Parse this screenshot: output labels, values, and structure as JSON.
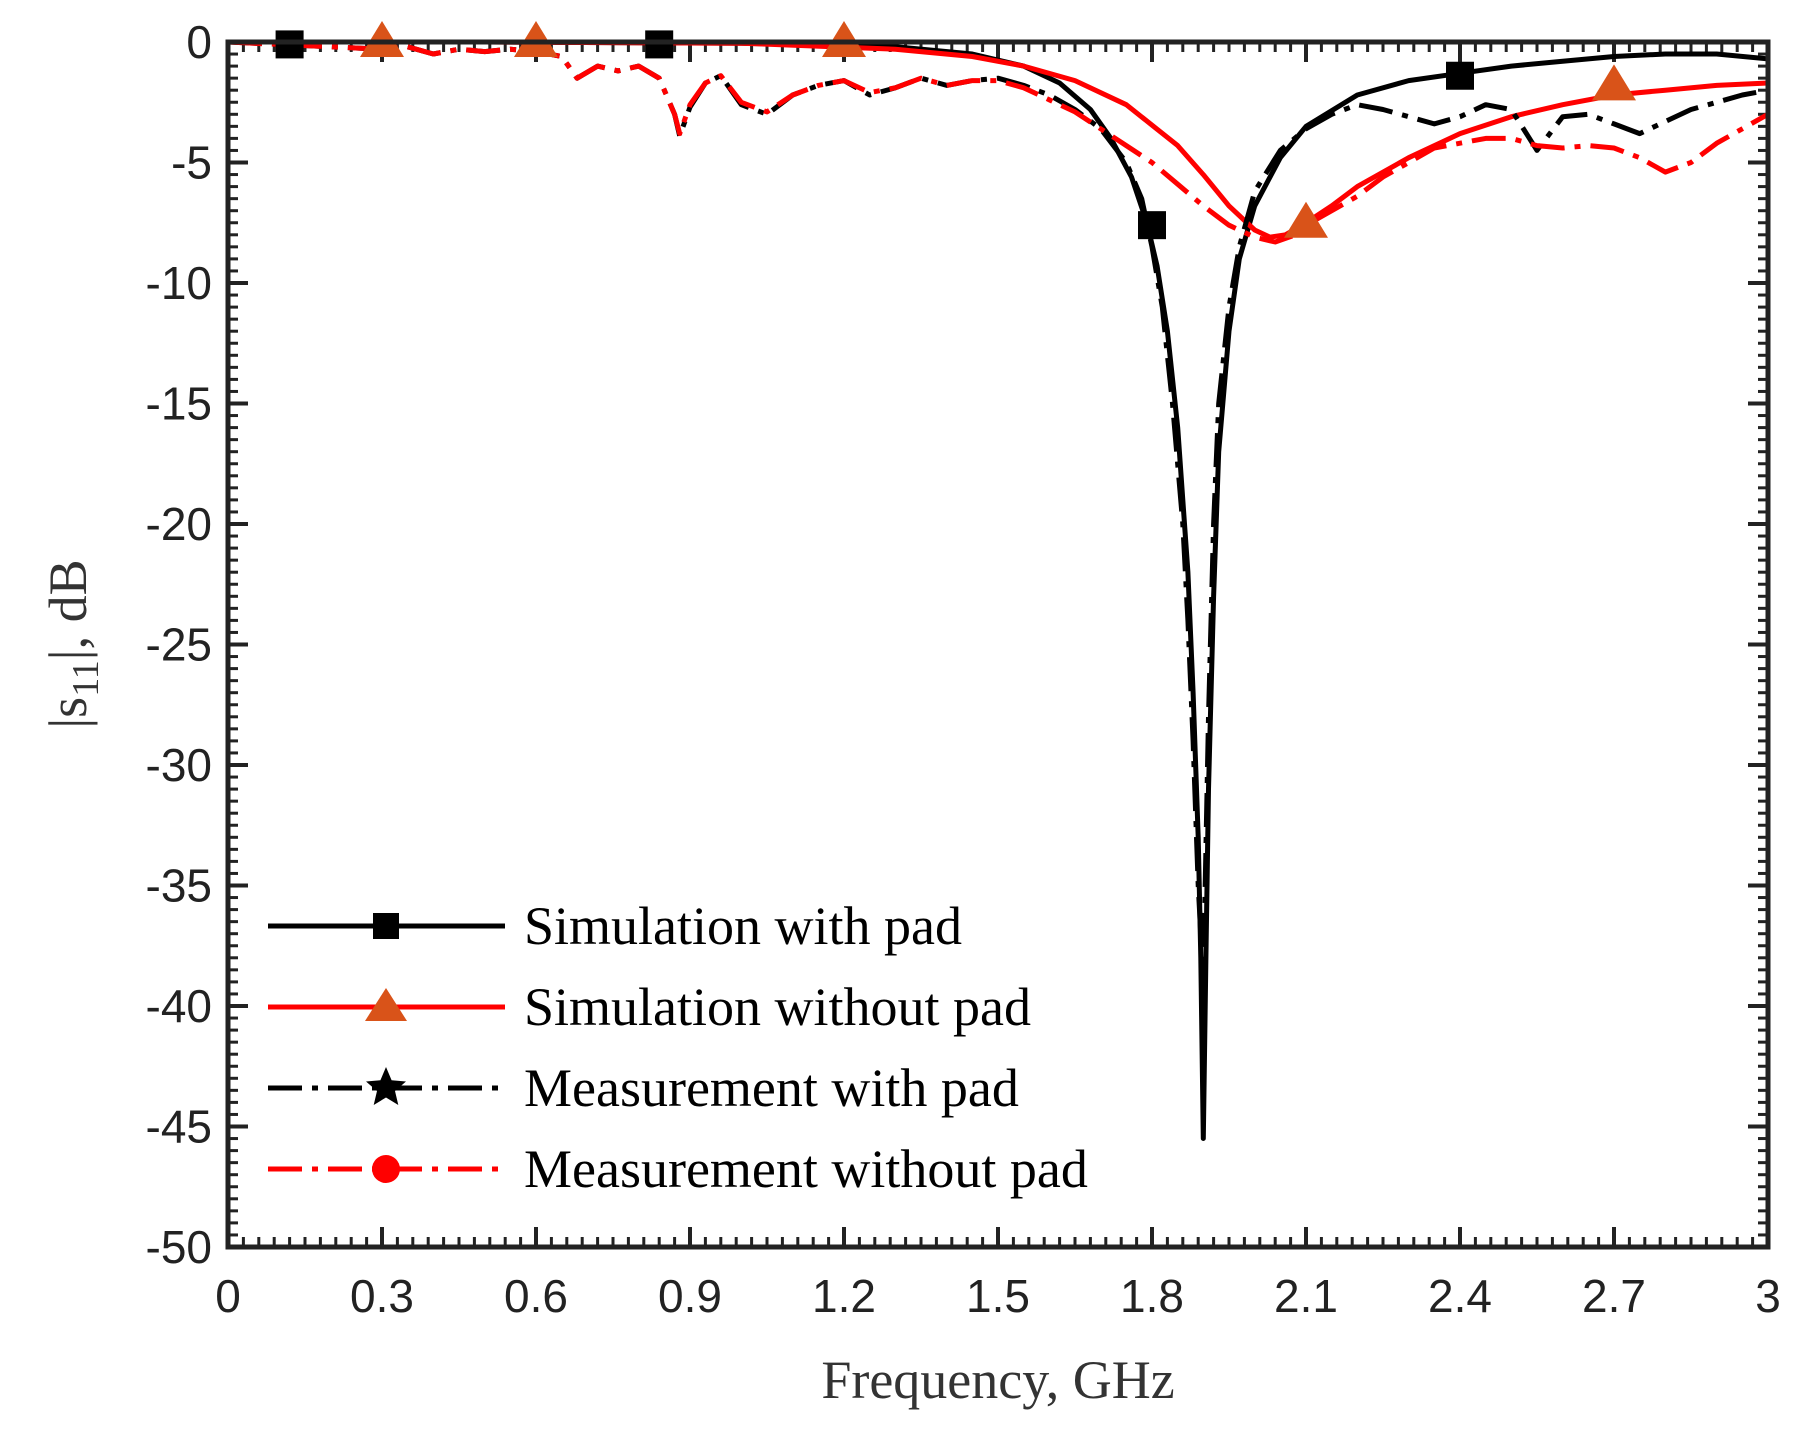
{
  "chart_data": {
    "type": "line",
    "title": "",
    "xlabel": "Frequency, GHz",
    "ylabel": "|s11|, dB",
    "ylabel_main": "|s",
    "ylabel_sub": "11",
    "ylabel_tail": "|, dB",
    "xlim": [
      0,
      3
    ],
    "ylim": [
      -50,
      0
    ],
    "xticks": [
      0,
      0.3,
      0.6,
      0.9,
      1.2,
      1.5,
      1.8,
      2.1,
      2.4,
      2.7,
      3
    ],
    "xtick_labels": [
      "0",
      "0.3",
      "0.6",
      "0.9",
      "1.2",
      "1.5",
      "1.8",
      "2.1",
      "2.4",
      "2.7",
      "3"
    ],
    "yticks": [
      0,
      -5,
      -10,
      -15,
      -20,
      -25,
      -30,
      -35,
      -40,
      -45,
      -50
    ],
    "ytick_labels": [
      "0",
      "-5",
      "-10",
      "-15",
      "-20",
      "-25",
      "-30",
      "-35",
      "-40",
      "-45",
      "-50"
    ],
    "grid": false,
    "legend_position": "bottom-left",
    "series": [
      {
        "name": "Simulation with pad",
        "color": "#000000",
        "dash": "solid",
        "marker": "square",
        "marker_color": "#000000",
        "x": [
          0,
          0.5,
          1.0,
          1.3,
          1.45,
          1.55,
          1.62,
          1.68,
          1.72,
          1.76,
          1.79,
          1.81,
          1.83,
          1.85,
          1.87,
          1.88,
          1.89,
          1.895,
          1.9,
          1.905,
          1.91,
          1.92,
          1.93,
          1.95,
          1.97,
          2.0,
          2.05,
          2.1,
          2.2,
          2.3,
          2.4,
          2.5,
          2.6,
          2.7,
          2.8,
          2.9,
          3.0
        ],
        "y": [
          0,
          0,
          -0.05,
          -0.2,
          -0.5,
          -1.0,
          -1.7,
          -2.8,
          -4.0,
          -5.6,
          -7.5,
          -9.3,
          -12,
          -16,
          -22,
          -27,
          -33,
          -38,
          -45.5,
          -38,
          -31,
          -23,
          -17,
          -12,
          -9,
          -6.8,
          -4.8,
          -3.5,
          -2.2,
          -1.6,
          -1.3,
          -1.0,
          -0.8,
          -0.6,
          -0.5,
          -0.5,
          -0.7
        ],
        "marker_x": [
          0.12,
          0.84,
          1.8,
          2.4
        ],
        "marker_y": [
          -0.1,
          -0.1,
          -7.6,
          -1.4
        ]
      },
      {
        "name": "Simulation without pad",
        "color": "#ff0000",
        "dash": "solid",
        "marker": "triangle",
        "marker_color": "#d95319",
        "x": [
          0,
          0.5,
          1.0,
          1.3,
          1.45,
          1.55,
          1.65,
          1.75,
          1.85,
          1.9,
          1.95,
          2.0,
          2.03,
          2.06,
          2.1,
          2.15,
          2.2,
          2.3,
          2.4,
          2.5,
          2.6,
          2.7,
          2.8,
          2.9,
          3.0
        ],
        "y": [
          0,
          0,
          -0.05,
          -0.3,
          -0.6,
          -1.0,
          -1.6,
          -2.6,
          -4.3,
          -5.5,
          -6.8,
          -7.8,
          -8.1,
          -8.0,
          -7.5,
          -6.8,
          -6.0,
          -4.8,
          -3.8,
          -3.1,
          -2.6,
          -2.2,
          -2.0,
          -1.8,
          -1.7
        ],
        "marker_x": [
          0.3,
          0.6,
          1.2,
          2.1,
          2.7
        ],
        "marker_y": [
          0,
          0,
          0,
          -7.5,
          -1.8
        ]
      },
      {
        "name": "Measurement with pad",
        "color": "#000000",
        "dash": "dashdot",
        "marker": "star",
        "marker_color": "#000000",
        "x": [
          0,
          0.1,
          0.2,
          0.3,
          0.35,
          0.4,
          0.45,
          0.5,
          0.55,
          0.6,
          0.65,
          0.68,
          0.72,
          0.76,
          0.8,
          0.84,
          0.87,
          0.88,
          0.9,
          0.93,
          0.96,
          1.0,
          1.05,
          1.1,
          1.15,
          1.2,
          1.25,
          1.3,
          1.35,
          1.4,
          1.45,
          1.5,
          1.55,
          1.6,
          1.65,
          1.7,
          1.75,
          1.78,
          1.8,
          1.82,
          1.84,
          1.86,
          1.87,
          1.88,
          1.89,
          1.9,
          1.91,
          1.92,
          1.93,
          1.95,
          1.97,
          2.0,
          2.05,
          2.1,
          2.15,
          2.2,
          2.25,
          2.3,
          2.35,
          2.4,
          2.45,
          2.5,
          2.55,
          2.6,
          2.65,
          2.7,
          2.75,
          2.8,
          2.85,
          2.9,
          2.95,
          3.0
        ],
        "y": [
          0,
          -0.1,
          -0.2,
          -0.3,
          -0.2,
          -0.5,
          -0.3,
          -0.4,
          -0.3,
          -0.4,
          -0.6,
          -1.5,
          -1.0,
          -1.2,
          -1.0,
          -1.5,
          -3.0,
          -3.9,
          -2.7,
          -1.7,
          -1.4,
          -2.6,
          -3.0,
          -2.2,
          -1.8,
          -1.6,
          -2.2,
          -1.9,
          -1.5,
          -1.8,
          -1.6,
          -1.5,
          -1.8,
          -2.2,
          -2.8,
          -3.6,
          -5.0,
          -6.5,
          -8.5,
          -11,
          -15,
          -20,
          -24,
          -29,
          -35,
          -39,
          -28,
          -20,
          -15,
          -11,
          -8.5,
          -6.2,
          -4.5,
          -3.6,
          -3.0,
          -2.6,
          -2.8,
          -3.1,
          -3.4,
          -3.1,
          -2.6,
          -2.8,
          -4.5,
          -3.1,
          -3.0,
          -3.4,
          -3.8,
          -3.3,
          -2.8,
          -2.5,
          -2.2,
          -2.0
        ],
        "marker_x": [],
        "marker_y": []
      },
      {
        "name": "Measurement without pad",
        "color": "#ff0000",
        "dash": "dashdot",
        "marker": "circle",
        "marker_color": "#ff0000",
        "x": [
          0,
          0.1,
          0.2,
          0.3,
          0.35,
          0.4,
          0.45,
          0.5,
          0.55,
          0.6,
          0.65,
          0.68,
          0.72,
          0.76,
          0.8,
          0.84,
          0.87,
          0.88,
          0.9,
          0.93,
          0.96,
          1.0,
          1.05,
          1.1,
          1.15,
          1.2,
          1.25,
          1.3,
          1.35,
          1.4,
          1.45,
          1.5,
          1.55,
          1.6,
          1.65,
          1.7,
          1.75,
          1.8,
          1.85,
          1.9,
          1.95,
          2.0,
          2.04,
          2.08,
          2.1,
          2.15,
          2.2,
          2.25,
          2.3,
          2.35,
          2.4,
          2.45,
          2.5,
          2.55,
          2.6,
          2.65,
          2.7,
          2.75,
          2.8,
          2.85,
          2.9,
          2.95,
          3.0
        ],
        "y": [
          0,
          -0.1,
          -0.2,
          -0.3,
          -0.2,
          -0.5,
          -0.3,
          -0.4,
          -0.3,
          -0.4,
          -0.6,
          -1.5,
          -1.0,
          -1.2,
          -1.0,
          -1.5,
          -3.0,
          -3.8,
          -2.6,
          -1.7,
          -1.4,
          -2.5,
          -2.9,
          -2.2,
          -1.8,
          -1.6,
          -2.1,
          -1.9,
          -1.5,
          -1.8,
          -1.6,
          -1.6,
          -1.9,
          -2.4,
          -2.9,
          -3.6,
          -4.3,
          -5.0,
          -5.9,
          -6.8,
          -7.6,
          -8.1,
          -8.3,
          -8.0,
          -7.6,
          -7.0,
          -6.4,
          -5.6,
          -5.0,
          -4.4,
          -4.2,
          -4.0,
          -4.0,
          -4.3,
          -4.4,
          -4.3,
          -4.4,
          -4.8,
          -5.4,
          -5.0,
          -4.2,
          -3.6,
          -3.0
        ],
        "marker_x": [],
        "marker_y": []
      }
    ]
  }
}
